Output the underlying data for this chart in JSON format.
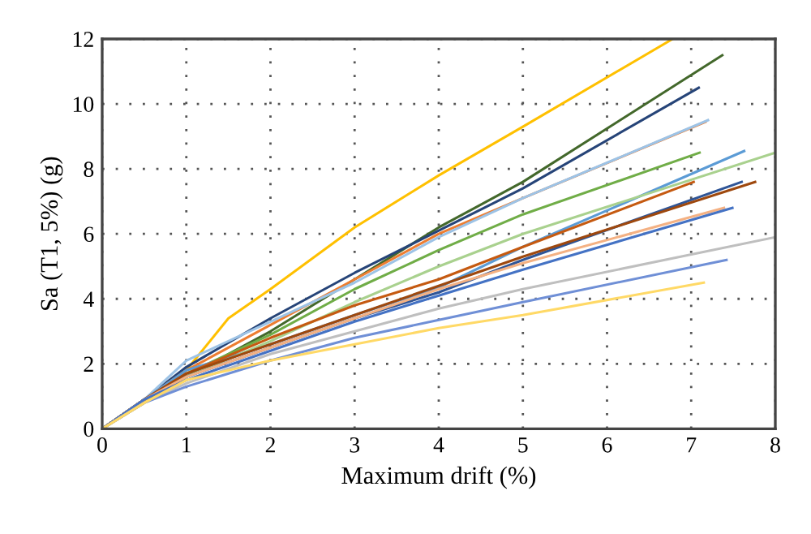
{
  "chart_data": {
    "type": "line",
    "xlabel": "Maximum drift (%)",
    "ylabel": "Sa (T1, 5%) (g)",
    "xlim": [
      0,
      8
    ],
    "ylim": [
      0,
      12
    ],
    "xticks": [
      0,
      1,
      2,
      3,
      4,
      5,
      6,
      7,
      8
    ],
    "yticks": [
      0,
      2,
      4,
      6,
      8,
      10,
      12
    ],
    "grid": true,
    "line_style": "solid",
    "marker": "none",
    "legend": false,
    "series": [
      {
        "color": "#ffc000",
        "x": [
          0,
          0.5,
          1,
          1.5,
          2,
          3,
          4,
          5,
          6.78
        ],
        "values": [
          0,
          0.8,
          1.8,
          3.4,
          4.3,
          6.2,
          7.8,
          9.3,
          12
        ]
      },
      {
        "color": "#43682b",
        "x": [
          0,
          0.5,
          1,
          2,
          3,
          4,
          5,
          7.37
        ],
        "values": [
          0,
          0.9,
          1.6,
          3.0,
          4.6,
          6.2,
          7.6,
          11.5
        ]
      },
      {
        "color": "#264478",
        "x": [
          0,
          0.5,
          1,
          2,
          3,
          4,
          5,
          7.09
        ],
        "values": [
          0,
          0.9,
          1.9,
          3.4,
          4.8,
          6.1,
          7.4,
          10.5
        ]
      },
      {
        "color": "#ed7d31",
        "x": [
          0,
          0.5,
          1,
          2,
          3,
          4,
          5,
          7.17
        ],
        "values": [
          0,
          0.9,
          1.8,
          3.2,
          4.6,
          6.0,
          7.1,
          9.45
        ]
      },
      {
        "color": "#9dc3e6",
        "x": [
          0,
          0.5,
          1,
          2,
          3,
          4,
          5,
          7.2
        ],
        "values": [
          0,
          0.9,
          2.1,
          3.3,
          4.5,
          5.9,
          7.1,
          9.5
        ]
      },
      {
        "color": "#70ad47",
        "x": [
          0,
          0.5,
          1,
          2,
          3,
          4,
          5,
          7.1
        ],
        "values": [
          0,
          0.9,
          1.7,
          2.9,
          4.3,
          5.5,
          6.6,
          8.5
        ]
      },
      {
        "color": "#5b9bd5",
        "x": [
          0,
          0.5,
          1,
          2,
          3,
          4,
          5,
          7.63
        ],
        "values": [
          0,
          0.9,
          1.8,
          2.6,
          3.5,
          4.35,
          5.6,
          8.55
        ]
      },
      {
        "color": "#a9d18e",
        "x": [
          0,
          0.5,
          1,
          2,
          3,
          4,
          5,
          8
        ],
        "values": [
          0,
          0.9,
          1.6,
          2.7,
          3.9,
          5.0,
          6.0,
          8.5
        ]
      },
      {
        "color": "#c55a11",
        "x": [
          0,
          0.5,
          1,
          2,
          3,
          4,
          5,
          7.03
        ],
        "values": [
          0,
          0.9,
          1.7,
          2.8,
          3.8,
          4.6,
          5.6,
          7.6
        ]
      },
      {
        "color": "#2f5597",
        "x": [
          0,
          0.5,
          1,
          2,
          3,
          4,
          5,
          7.6
        ],
        "values": [
          0,
          0.9,
          1.6,
          2.5,
          3.4,
          4.2,
          5.2,
          7.6
        ]
      },
      {
        "color": "#9e480e",
        "x": [
          0,
          0.5,
          1,
          2,
          3,
          4,
          5,
          7.76
        ],
        "values": [
          0,
          0.9,
          1.7,
          2.6,
          3.5,
          4.4,
          5.3,
          7.6
        ]
      },
      {
        "color": "#f4b183",
        "x": [
          0,
          0.5,
          1,
          2,
          3,
          4,
          5,
          7.39
        ],
        "values": [
          0,
          0.9,
          1.6,
          2.5,
          3.4,
          4.3,
          5.1,
          6.8
        ]
      },
      {
        "color": "#4472c4",
        "x": [
          0,
          0.5,
          1,
          2,
          3,
          4,
          5,
          7.49
        ],
        "values": [
          0,
          0.9,
          1.5,
          2.4,
          3.3,
          4.1,
          4.9,
          6.8
        ]
      },
      {
        "color": "#bfbfbf",
        "x": [
          0,
          0.5,
          1,
          2,
          3,
          4,
          5,
          8
        ],
        "values": [
          0,
          0.8,
          1.4,
          2.3,
          3.0,
          3.7,
          4.3,
          5.9
        ]
      },
      {
        "color": "#6f8fd6",
        "x": [
          0,
          0.5,
          1,
          2,
          3,
          4,
          5,
          7.42
        ],
        "values": [
          0,
          0.8,
          1.3,
          2.1,
          2.8,
          3.35,
          3.9,
          5.2
        ]
      },
      {
        "color": "#ffd966",
        "x": [
          0,
          0.5,
          1,
          2,
          3,
          4,
          5,
          7.15
        ],
        "values": [
          0,
          0.8,
          1.5,
          2.1,
          2.6,
          3.1,
          3.5,
          4.5
        ]
      }
    ]
  }
}
